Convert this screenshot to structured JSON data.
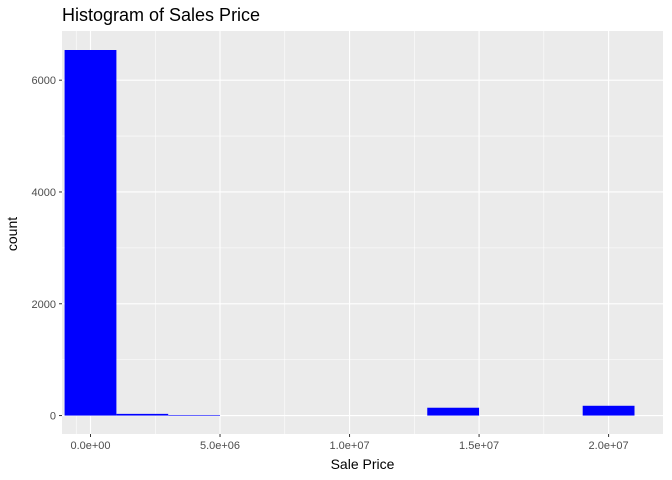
{
  "chart_data": {
    "type": "bar",
    "title": "Histogram of Sales Price",
    "xlabel": "Sale Price",
    "ylabel": "count",
    "xlim": [
      -1100000,
      22100000
    ],
    "ylim": [
      -330,
      6880
    ],
    "x_ticks": [
      {
        "value": 0,
        "label": "0.0e+00"
      },
      {
        "value": 5000000,
        "label": "5.0e+06"
      },
      {
        "value": 10000000,
        "label": "1.0e+07"
      },
      {
        "value": 15000000,
        "label": "1.5e+07"
      },
      {
        "value": 20000000,
        "label": "2.0e+07"
      }
    ],
    "y_ticks": [
      {
        "value": 0,
        "label": "0"
      },
      {
        "value": 2000,
        "label": "2000"
      },
      {
        "value": 4000,
        "label": "4000"
      },
      {
        "value": 6000,
        "label": "6000"
      }
    ],
    "bins": [
      {
        "x0": -1000000,
        "x1": 1000000,
        "count": 6540
      },
      {
        "x0": 1000000,
        "x1": 3000000,
        "count": 30
      },
      {
        "x0": 3000000,
        "x1": 5000000,
        "count": 10
      },
      {
        "x0": 5000000,
        "x1": 7000000,
        "count": 0
      },
      {
        "x0": 7000000,
        "x1": 9000000,
        "count": 0
      },
      {
        "x0": 9000000,
        "x1": 11000000,
        "count": 0
      },
      {
        "x0": 11000000,
        "x1": 13000000,
        "count": 0
      },
      {
        "x0": 13000000,
        "x1": 15000000,
        "count": 140
      },
      {
        "x0": 15000000,
        "x1": 17000000,
        "count": 0
      },
      {
        "x0": 17000000,
        "x1": 19000000,
        "count": 0
      },
      {
        "x0": 19000000,
        "x1": 21000000,
        "count": 175
      }
    ],
    "fill_color": "#0000ff",
    "panel_color": "#ebebeb",
    "grid": true,
    "grid_color": "#ffffff",
    "legend": "none"
  }
}
